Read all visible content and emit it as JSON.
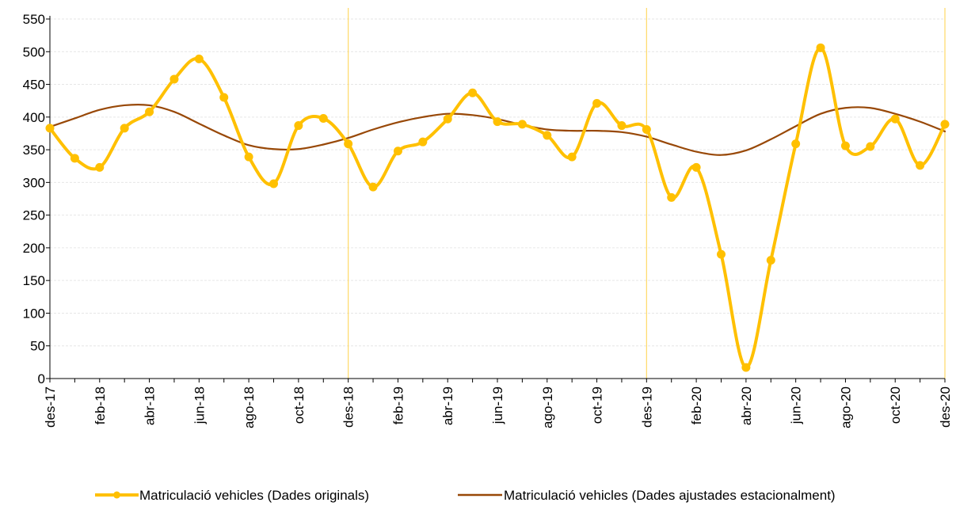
{
  "chart_data": {
    "type": "line",
    "title": "",
    "xlabel": "",
    "ylabel": "",
    "ylim": [
      0,
      550
    ],
    "yticks": [
      0,
      50,
      100,
      150,
      200,
      250,
      300,
      350,
      400,
      450,
      500,
      550
    ],
    "grid": "horizontal",
    "legend_position": "bottom",
    "x": [
      "des-17",
      "gen-18",
      "feb-18",
      "mar-18",
      "abr-18",
      "mai-18",
      "jun-18",
      "jul-18",
      "ago-18",
      "set-18",
      "oct-18",
      "nov-18",
      "des-18",
      "gen-19",
      "feb-19",
      "mar-19",
      "abr-19",
      "mai-19",
      "jun-19",
      "jul-19",
      "ago-19",
      "set-19",
      "oct-19",
      "nov-19",
      "des-19",
      "gen-20",
      "feb-20",
      "mar-20",
      "abr-20",
      "mai-20",
      "jun-20",
      "jul-20",
      "ago-20",
      "set-20",
      "oct-20",
      "nov-20",
      "des-20"
    ],
    "x_tick_labels_shown": [
      "des-17",
      "feb-18",
      "abr-18",
      "jun-18",
      "ago-18",
      "oct-18",
      "des-18",
      "feb-19",
      "abr-19",
      "jun-19",
      "ago-19",
      "oct-19",
      "des-19",
      "feb-20",
      "abr-20",
      "jun-20",
      "ago-20",
      "oct-20",
      "des-20"
    ],
    "year_separators": [
      "des-18",
      "des-19",
      "des-20"
    ],
    "series": [
      {
        "name": "Matriculació vehicles (Dades originals)",
        "color": "#FFC000",
        "markers": true,
        "values": [
          383,
          337,
          323,
          383,
          408,
          458,
          489,
          430,
          339,
          298,
          387,
          398,
          359,
          293,
          348,
          362,
          397,
          437,
          393,
          389,
          372,
          339,
          421,
          387,
          381,
          277,
          323,
          190,
          17,
          181,
          359,
          506,
          356,
          355,
          397,
          326,
          389
        ]
      },
      {
        "name": "Matriculació vehicles (Dades ajustades estacionalment)",
        "color": "#984807",
        "markers": false,
        "values": [
          385,
          398,
          411,
          418,
          418,
          408,
          390,
          372,
          357,
          351,
          351,
          358,
          368,
          381,
          392,
          400,
          405,
          403,
          397,
          388,
          381,
          379,
          379,
          377,
          370,
          358,
          347,
          342,
          349,
          366,
          386,
          405,
          414,
          414,
          405,
          393,
          378
        ]
      }
    ]
  }
}
